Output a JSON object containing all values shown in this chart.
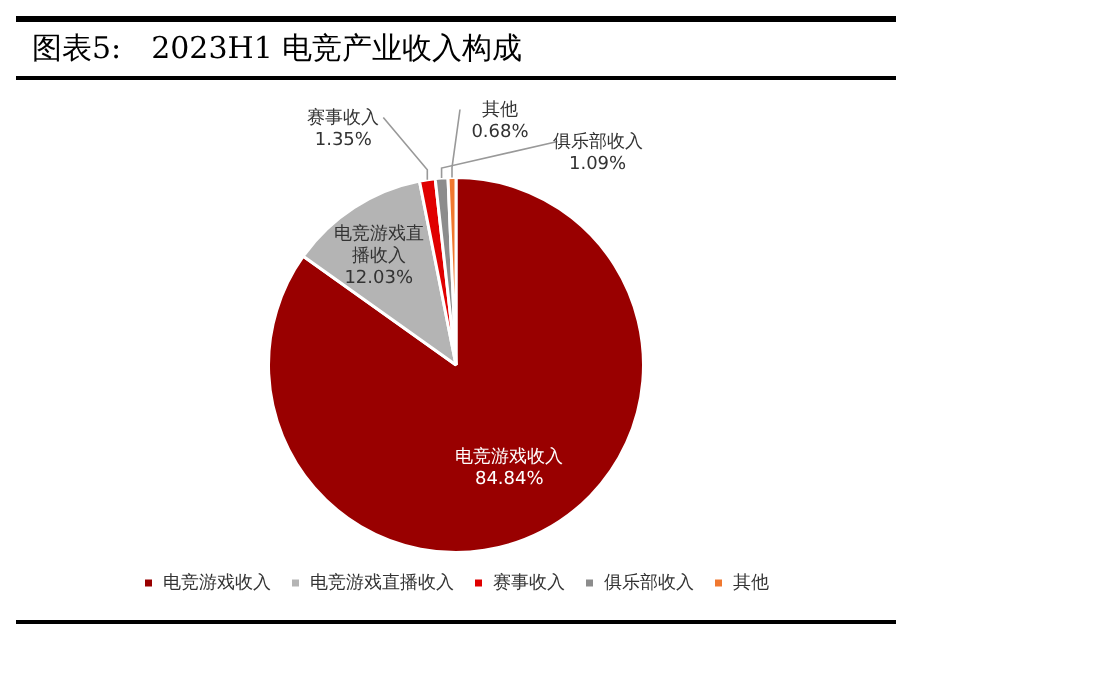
{
  "chart_data": {
    "type": "pie",
    "title": "图表5:　2023H1 电竞产业收入构成",
    "categories": [
      "电竞游戏收入",
      "电竞游戏直播收入",
      "赛事收入",
      "俱乐部收入",
      "其他"
    ],
    "values": [
      84.84,
      12.03,
      1.35,
      1.09,
      0.68
    ],
    "value_labels": [
      "84.84%",
      "12.03%",
      "1.35%",
      "1.09%",
      "0.68%"
    ],
    "colors": [
      "#990000",
      "#b4b4b4",
      "#e00000",
      "#8c8c8c",
      "#f07830"
    ],
    "legend": "bottom"
  }
}
